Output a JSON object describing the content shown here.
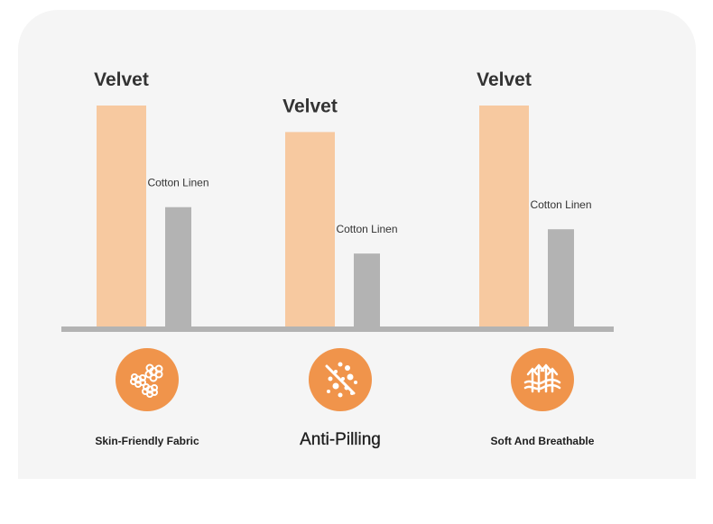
{
  "chart_data": {
    "type": "bar",
    "categories": [
      "Skin-Friendly Fabric",
      "Anti-Pilling",
      "Soft And Breathable"
    ],
    "series": [
      {
        "name": "Velvet",
        "values": [
          100,
          88,
          100
        ]
      },
      {
        "name": "Cotton Linen",
        "values": [
          54,
          33,
          44
        ]
      }
    ],
    "ylim": [
      0,
      100
    ],
    "grid": false
  },
  "colors": {
    "velvet": "#f7c9a0",
    "cotton_linen": "#b3b3b3",
    "baseline": "#b3b3b3",
    "icon_bg": "#f0944b",
    "panel_bg": "#f5f5f5"
  },
  "features": [
    {
      "label": "Skin-Friendly Fabric",
      "icon": "flower-icon"
    },
    {
      "label": "Anti-Pilling",
      "icon": "anti-pilling-icon"
    },
    {
      "label": "Soft And Breathable",
      "icon": "breathable-arrows-icon"
    }
  ]
}
